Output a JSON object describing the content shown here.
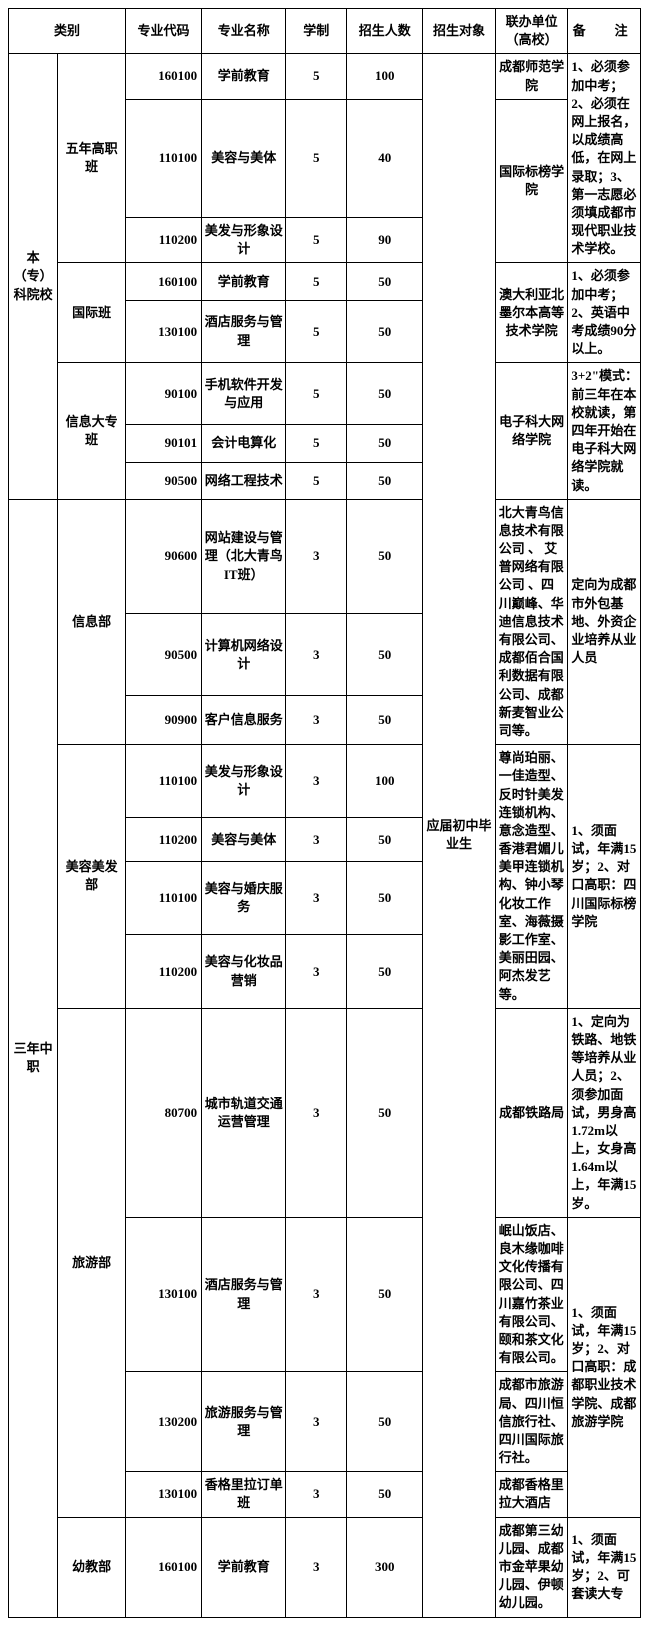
{
  "headers": {
    "category": "类别",
    "code": "专业代码",
    "name": "专业名称",
    "duration": "学制",
    "enrollment": "招生人数",
    "target": "招生对象",
    "coop": "联办单位（高校）",
    "note": "备　注"
  },
  "category_main": {
    "ben_zhuan": "本（专）科院校",
    "san_nian": "三年中职"
  },
  "category_sub": {
    "wunian": "五年高职班",
    "guoji": "国际班",
    "xinxi_dz": "信息大专班",
    "xinxi_bu": "信息部",
    "meirong": "美容美发部",
    "lvyou": "旅游部",
    "youjiao": "幼教部"
  },
  "target_text": "应届初中毕业生",
  "rows": [
    {
      "code": "160100",
      "name": "学前教育",
      "dur": "5",
      "num": "100"
    },
    {
      "code": "110100",
      "name": "美容与美体",
      "dur": "5",
      "num": "40"
    },
    {
      "code": "110200",
      "name": "美发与形象设计",
      "dur": "5",
      "num": "90"
    },
    {
      "code": "160100",
      "name": "学前教育",
      "dur": "5",
      "num": "50"
    },
    {
      "code": "130100",
      "name": "酒店服务与管理",
      "dur": "5",
      "num": "50"
    },
    {
      "code": "90100",
      "name": "手机软件开发与应用",
      "dur": "5",
      "num": "50"
    },
    {
      "code": "90101",
      "name": "会计电算化",
      "dur": "5",
      "num": "50"
    },
    {
      "code": "90500",
      "name": "网络工程技术",
      "dur": "5",
      "num": "50"
    },
    {
      "code": "90600",
      "name": "网站建设与管理（北大青鸟IT班）",
      "dur": "3",
      "num": "50"
    },
    {
      "code": "90500",
      "name": "计算机网络设计",
      "dur": "3",
      "num": "50"
    },
    {
      "code": "90900",
      "name": "客户信息服务",
      "dur": "3",
      "num": "50"
    },
    {
      "code": "110100",
      "name": "美发与形象设计",
      "dur": "3",
      "num": "100"
    },
    {
      "code": "110200",
      "name": "美容与美体",
      "dur": "3",
      "num": "50"
    },
    {
      "code": "110100",
      "name": "美容与婚庆服务",
      "dur": "3",
      "num": "50"
    },
    {
      "code": "110200",
      "name": "美容与化妆品营销",
      "dur": "3",
      "num": "50"
    },
    {
      "code": "80700",
      "name": "城市轨道交通运营管理",
      "dur": "3",
      "num": "50"
    },
    {
      "code": "130100",
      "name": "酒店服务与管理",
      "dur": "3",
      "num": "50"
    },
    {
      "code": "130200",
      "name": "旅游服务与管理",
      "dur": "3",
      "num": "50"
    },
    {
      "code": "130100",
      "name": "香格里拉订单班",
      "dur": "3",
      "num": "50"
    },
    {
      "code": "160100",
      "name": "学前教育",
      "dur": "3",
      "num": "300"
    }
  ],
  "coops": {
    "c1": "成都师范学院",
    "c2": "国际标榜学院",
    "c3": "澳大利亚北墨尔本高等技术学院",
    "c4": "电子科大网络学院",
    "c5": "北大青鸟信息技术有限公司 、 艾普网络有限公司 、四川巅峰、华迪信息技术有限公司、成都佰合国利数据有限公司、成都新麦智业公司等。",
    "c6": "尊尚珀丽、 一佳造型、反时针美发连锁机构、意念造型、香港君媚儿美甲连锁机构、钟小琴化妆工作室、海薇摄影工作室、美丽田园、阿杰发艺等。",
    "c7": "成都铁路局",
    "c8": "岷山饭店、良木缘咖啡文化传播有限公司、四川嘉竹茶业有限公司、颐和茶文化有限公司。",
    "c9": "成都市旅游局、四川恒信旅行社、四川国际旅行社。",
    "c10": "成都香格里拉大酒店",
    "c11": "成都第三幼儿园、成都市金苹果幼儿园、伊顿幼儿园。"
  },
  "notes": {
    "n1": "1、必须参加中考；2、必须在网上报名，以成绩高低，在网上录取；3、第一志愿必须填成都市现代职业技术学校。",
    "n2": "1、必须参加中考；2、英语中考成绩90分以上。",
    "n3": "3+2\"模式：前三年在本校就读，第四年开始在电子科大网络学院就读。",
    "n4": "定向为成都市外包基地、外资企业培养从业人员",
    "n5": "1、须面试，年满15岁；2、对口高职：四川国际标榜学院",
    "n6": "1、定向为铁路、地铁等培养从业人员；2、须参加面试，男身高1.72m以上，女身高 1.64m以上，年满15岁。",
    "n7": "1、须面试，年满15岁；2、对口高职：成都职业技术学院、成都旅游学院",
    "n8": "1、须面试，年满15岁；2、可套读大专"
  }
}
